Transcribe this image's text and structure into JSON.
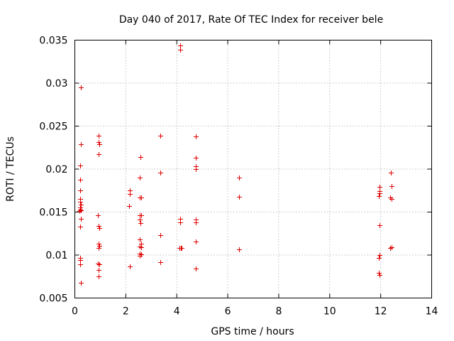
{
  "chart_data": {
    "type": "scatter",
    "title": "Day 040 of 2017, Rate Of TEC Index for receiver bele",
    "xlabel": "GPS time / hours",
    "ylabel": "ROTI / TECUs",
    "xlim": [
      0,
      14
    ],
    "ylim": [
      0.005,
      0.035
    ],
    "xticks": [
      0,
      2,
      4,
      6,
      8,
      10,
      12,
      14
    ],
    "xtick_labels": [
      "0",
      "2",
      "4",
      "6",
      "8",
      "10",
      "12",
      "14"
    ],
    "yticks": [
      0.005,
      0.01,
      0.015,
      0.02,
      0.025,
      0.03,
      0.035
    ],
    "ytick_labels": [
      "0.005",
      "0.01",
      "0.015",
      "0.02",
      "0.025",
      "0.03",
      "0.035"
    ],
    "grid": true,
    "marker": "+",
    "color": "#e00000",
    "points": [
      [
        0.25,
        0.0295
      ],
      [
        0.25,
        0.0229
      ],
      [
        0.2,
        0.0204
      ],
      [
        0.22,
        0.0188
      ],
      [
        0.22,
        0.0175
      ],
      [
        0.2,
        0.0165
      ],
      [
        0.22,
        0.0162
      ],
      [
        0.24,
        0.0159
      ],
      [
        0.2,
        0.0155
      ],
      [
        0.22,
        0.0153
      ],
      [
        0.25,
        0.0152
      ],
      [
        0.18,
        0.0151
      ],
      [
        0.25,
        0.0142
      ],
      [
        0.22,
        0.0133
      ],
      [
        0.22,
        0.0097
      ],
      [
        0.22,
        0.0094
      ],
      [
        0.2,
        0.0089
      ],
      [
        0.25,
        0.0068
      ],
      [
        0.92,
        0.0239
      ],
      [
        0.92,
        0.0231
      ],
      [
        0.95,
        0.0229
      ],
      [
        0.92,
        0.0217
      ],
      [
        0.9,
        0.0146
      ],
      [
        0.92,
        0.0134
      ],
      [
        0.95,
        0.0131
      ],
      [
        0.92,
        0.0113
      ],
      [
        0.95,
        0.0111
      ],
      [
        0.92,
        0.0108
      ],
      [
        0.9,
        0.009
      ],
      [
        0.95,
        0.0089
      ],
      [
        0.92,
        0.0083
      ],
      [
        0.92,
        0.0075
      ],
      [
        2.15,
        0.0175
      ],
      [
        2.15,
        0.0171
      ],
      [
        2.12,
        0.0157
      ],
      [
        2.15,
        0.0087
      ],
      [
        2.58,
        0.0214
      ],
      [
        2.55,
        0.019
      ],
      [
        2.55,
        0.0167
      ],
      [
        2.6,
        0.0167
      ],
      [
        2.55,
        0.0146
      ],
      [
        2.6,
        0.0146
      ],
      [
        2.55,
        0.0141
      ],
      [
        2.58,
        0.0137
      ],
      [
        2.55,
        0.0118
      ],
      [
        2.6,
        0.0113
      ],
      [
        2.55,
        0.011
      ],
      [
        2.6,
        0.0109
      ],
      [
        2.55,
        0.0102
      ],
      [
        2.6,
        0.0101
      ],
      [
        2.55,
        0.0099
      ],
      [
        3.35,
        0.0239
      ],
      [
        3.35,
        0.0196
      ],
      [
        3.35,
        0.0123
      ],
      [
        3.35,
        0.0092
      ],
      [
        4.12,
        0.0344
      ],
      [
        4.12,
        0.0339
      ],
      [
        4.12,
        0.0142
      ],
      [
        4.12,
        0.0138
      ],
      [
        4.1,
        0.0108
      ],
      [
        4.15,
        0.0108
      ],
      [
        4.2,
        0.0108
      ],
      [
        4.75,
        0.0238
      ],
      [
        4.75,
        0.0213
      ],
      [
        4.75,
        0.0203
      ],
      [
        4.75,
        0.02
      ],
      [
        4.75,
        0.0141
      ],
      [
        4.75,
        0.0138
      ],
      [
        4.75,
        0.0116
      ],
      [
        4.75,
        0.0084
      ],
      [
        6.45,
        0.019
      ],
      [
        6.45,
        0.0168
      ],
      [
        6.45,
        0.0107
      ],
      [
        11.95,
        0.0179
      ],
      [
        11.95,
        0.0174
      ],
      [
        11.95,
        0.0172
      ],
      [
        11.92,
        0.0169
      ],
      [
        11.95,
        0.0135
      ],
      [
        11.95,
        0.01
      ],
      [
        11.92,
        0.0097
      ],
      [
        11.92,
        0.0079
      ],
      [
        11.95,
        0.0077
      ],
      [
        12.4,
        0.0196
      ],
      [
        12.42,
        0.018
      ],
      [
        12.38,
        0.0167
      ],
      [
        12.42,
        0.0165
      ],
      [
        12.42,
        0.0109
      ],
      [
        12.38,
        0.0108
      ]
    ]
  }
}
